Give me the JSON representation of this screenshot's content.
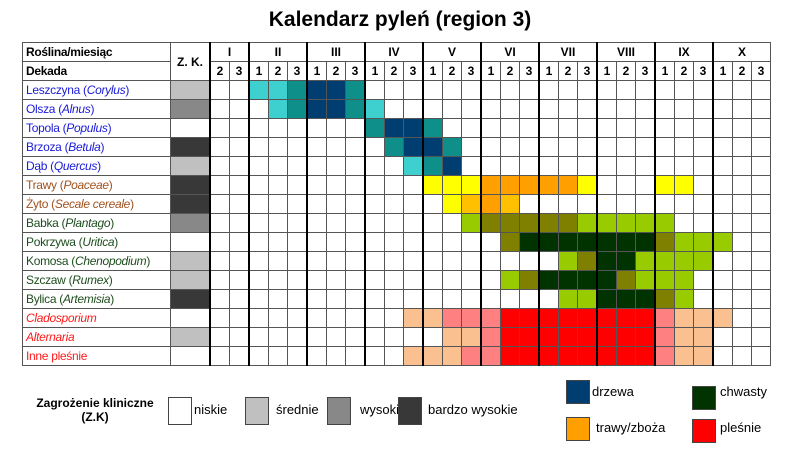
{
  "title": "Kalendarz pyleń (region 3)",
  "header": {
    "plant_month": "Roślina/miesiąc",
    "decade": "Dekada",
    "zk": "Z. K."
  },
  "months": [
    {
      "label": "I",
      "decades": [
        "2",
        "3"
      ]
    },
    {
      "label": "II",
      "decades": [
        "1",
        "2",
        "3"
      ]
    },
    {
      "label": "III",
      "decades": [
        "1",
        "2",
        "3"
      ]
    },
    {
      "label": "IV",
      "decades": [
        "1",
        "2",
        "3"
      ]
    },
    {
      "label": "V",
      "decades": [
        "1",
        "2",
        "3"
      ]
    },
    {
      "label": "VI",
      "decades": [
        "1",
        "2",
        "3"
      ]
    },
    {
      "label": "VII",
      "decades": [
        "1",
        "2",
        "3"
      ]
    },
    {
      "label": "VIII",
      "decades": [
        "1",
        "2",
        "3"
      ]
    },
    {
      "label": "IX",
      "decades": [
        "1",
        "2",
        "3"
      ]
    },
    {
      "label": "X",
      "decades": [
        "1",
        "2",
        "3"
      ]
    }
  ],
  "group_colors": {
    "trees": "#1a1ad8",
    "grasses": "#a0521e",
    "weeds": "#1e4d1e",
    "moulds": "#ff1a1a"
  },
  "zk_colors": {
    "niskie": "#ffffff",
    "srednie": "#c0c0c0",
    "wysokie": "#888888",
    "bardzo_wysokie": "#383838"
  },
  "cell_colors": {
    "c": "#3ecfcf",
    "t": "#0e8f8a",
    "n": "#003d70",
    "y": "#ffff00",
    "g": "#ffc000",
    "o": "#ffa000",
    "L": "#99cc00",
    "O": "#808000",
    "D": "#003300",
    "E": "#fac090",
    "P": "#ff8080",
    "R": "#ff0000"
  },
  "chart_data": {
    "type": "table",
    "title": "Kalendarz pyleń (region 3)",
    "rows": [
      {
        "name": "Leszczyna (",
        "latin": "Corylus",
        "end": ")",
        "group": "trees",
        "zk": "srednie",
        "cells": "..cctnnt....................."
      },
      {
        "name": "Olsza (",
        "latin": "Alnus",
        "end": ")",
        "group": "trees",
        "zk": "wysokie",
        "cells": "...ctnntc...................."
      },
      {
        "name": "Topola (",
        "latin": "Populus",
        "end": ")",
        "group": "trees",
        "zk": "niskie",
        "cells": "........tnnt................."
      },
      {
        "name": "Brzoza (",
        "latin": "Betula",
        "end": ")",
        "group": "trees",
        "zk": "bardzo_wysokie",
        "cells": ".........tnnt................"
      },
      {
        "name": "Dąb (",
        "latin": "Quercus",
        "end": ")",
        "group": "trees",
        "zk": "srednie",
        "cells": "..........ctn................"
      },
      {
        "name": "Trawy (",
        "latin": "Poaceae",
        "end": ")",
        "group": "grasses",
        "zk": "bardzo_wysokie",
        "cells": "...........yyyoooooy...yy...."
      },
      {
        "name": "Żyto (",
        "latin": "Secale cereale",
        "end": ")",
        "group": "grasses",
        "zk": "bardzo_wysokie",
        "cells": "............ygog............."
      },
      {
        "name": "Babka (",
        "latin": "Plantago",
        "end": ")",
        "group": "weeds",
        "zk": "wysokie",
        "cells": ".............LOOOOOLLLLL....."
      },
      {
        "name": "Pokrzywa (",
        "latin": "Uritica",
        "end": ")",
        "group": "weeds",
        "zk": "niskie",
        "cells": "...............ODDDDDDDOLLL.."
      },
      {
        "name": "Komosa (",
        "latin": "Chenopodium",
        "end": ")",
        "group": "weeds",
        "zk": "srednie",
        "cells": "..................LODDLLLL..."
      },
      {
        "name": "Szczaw (",
        "latin": "Rumex",
        "end": ")",
        "group": "weeds",
        "zk": "srednie",
        "cells": "...............LODDDDOLLL...."
      },
      {
        "name": "Bylica (",
        "latin": "Artemisia",
        "end": ")",
        "group": "weeds",
        "zk": "bardzo_wysokie",
        "cells": "..................LLDDDOL...."
      },
      {
        "name": "",
        "latin": "Cladosporium",
        "end": "",
        "group": "moulds",
        "zk": "niskie",
        "cells": "..........EEPPPRRRRRRRRPEEE.."
      },
      {
        "name": "",
        "latin": "Alternaria",
        "end": "",
        "group": "moulds",
        "zk": "srednie",
        "cells": "............EEPRRRRRRRRPEE..."
      },
      {
        "name": "Inne pleśnie",
        "latin": "",
        "end": "",
        "group": "moulds",
        "zk": "niskie",
        "cells": "..........EEEPPRRRRRRRRPEE..."
      }
    ]
  },
  "legend": {
    "zk_title": "Zagrożenie kliniczne",
    "zk_sub": "(Z.K)",
    "zk_items": [
      {
        "key": "niskie",
        "label": "niskie"
      },
      {
        "key": "srednie",
        "label": "średnie"
      },
      {
        "key": "wysokie",
        "label": "wysokie"
      },
      {
        "key": "bardzo_wysokie",
        "label": "bardzo wysokie"
      }
    ],
    "groups": [
      {
        "label": "drzewa",
        "color": "#003d70"
      },
      {
        "label": "chwasty",
        "color": "#003300"
      },
      {
        "label": "trawy/zboża",
        "color": "#ffa000"
      },
      {
        "label": "pleśnie",
        "color": "#ff0000"
      }
    ]
  }
}
